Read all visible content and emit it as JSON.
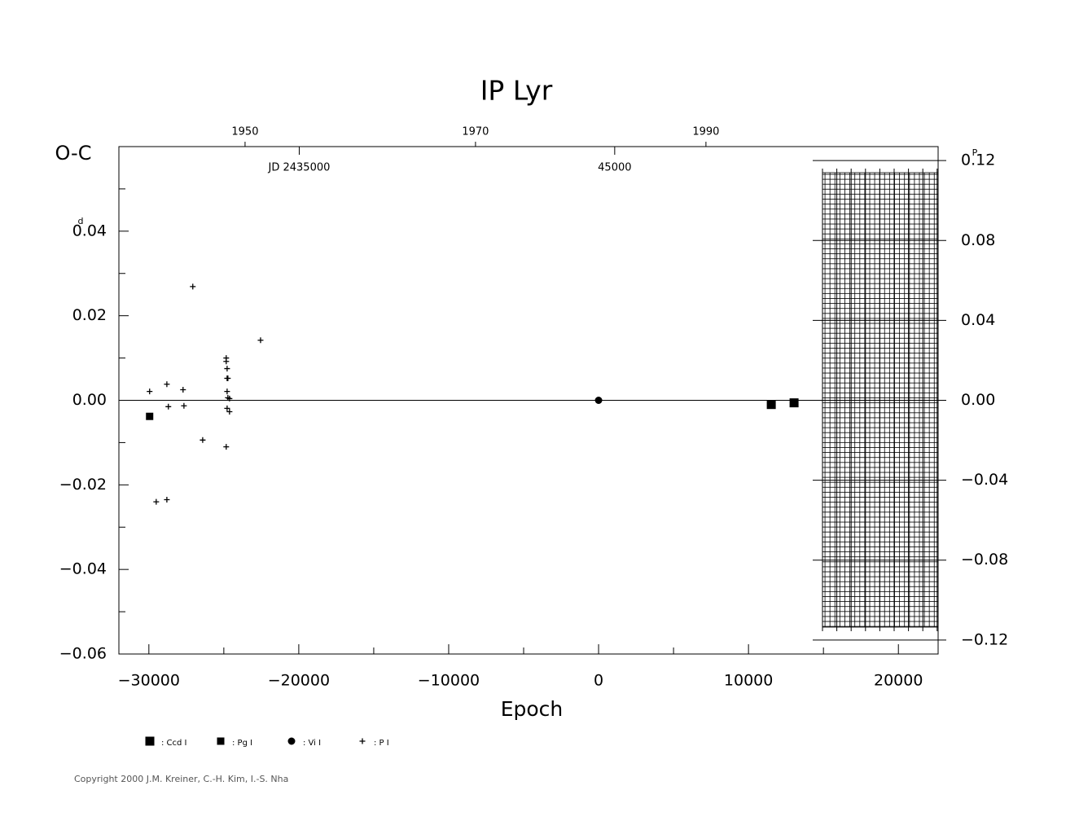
{
  "chart_data": {
    "type": "scatter",
    "title": "IP Lyr",
    "xlabel": "Epoch",
    "ylabel": "O-C",
    "y_unit": "d",
    "y2_unit": "P",
    "copyright": "Copyright 2000 J.M. Kreiner, C.-H. Kim, I.-S. Nha",
    "xlim": [
      -32000,
      22650
    ],
    "xticks": [
      {
        "value": -30000,
        "label": "−30000"
      },
      {
        "value": -20000,
        "label": "−20000"
      },
      {
        "value": -10000,
        "label": "−10000"
      },
      0,
      10000,
      20000
    ],
    "xminor": [
      -25000,
      -15000,
      -5000,
      5000,
      15000
    ],
    "ylim": [
      -0.06,
      0.06
    ],
    "yticks": [
      {
        "value": 0.04,
        "label": "0.04"
      },
      {
        "value": 0.02,
        "label": "0.02"
      },
      {
        "value": 0,
        "label": "0.00"
      },
      {
        "value": -0.02,
        "label": "−0.02"
      },
      {
        "value": -0.04,
        "label": "−0.04"
      },
      {
        "value": -0.06,
        "label": "−0.06"
      }
    ],
    "yminor": [
      0.05,
      0.03,
      0.01,
      -0.01,
      -0.03,
      -0.05
    ],
    "y2lim": [
      -0.127,
      0.127
    ],
    "y2ticks": [
      {
        "value": 0.12,
        "label": "0.12"
      },
      {
        "value": 0.08,
        "label": "0.08"
      },
      {
        "value": 0.04,
        "label": "0.04"
      },
      {
        "value": 0,
        "label": "0.00"
      },
      {
        "value": -0.04,
        "label": "−0.04"
      },
      {
        "value": -0.08,
        "label": "−0.08"
      },
      {
        "value": -0.12,
        "label": "−0.12"
      }
    ],
    "top_xlim": [
      1939.05,
      2010.15
    ],
    "top_xticks": [
      1950,
      1970,
      1990
    ],
    "jd_labels": [
      {
        "value": 2435000,
        "label": "JD 2435000"
      },
      {
        "value": 2445000,
        "label": "45000"
      }
    ],
    "reference_line": 0,
    "series": [
      {
        "name": ": Ccd I",
        "marker": "big-square",
        "color": "#000000",
        "x": [
          11520,
          13040
        ],
        "values": [
          -0.001,
          -0.0006
        ]
      },
      {
        "name": ": Pg I",
        "marker": "square",
        "color": "#000000",
        "x": [
          -29950
        ],
        "values": [
          -0.0038
        ]
      },
      {
        "name": ": Vi I",
        "marker": "circle",
        "color": "#000000",
        "x": [
          0
        ],
        "values": [
          0.0
        ]
      },
      {
        "name": ": P I",
        "marker": "plus",
        "color": "#000000",
        "x": [
          -27070,
          -29950,
          -28800,
          -28700,
          -27720,
          -27660,
          -26410,
          -29510,
          -28800,
          -24840,
          -24840,
          -24780,
          -24780,
          -24730,
          -24780,
          -24730,
          -24620,
          -24780,
          -24620,
          -24840,
          -22550
        ],
        "values": [
          0.0269,
          0.0021,
          0.0038,
          -0.0015,
          0.0025,
          -0.0013,
          -0.0094,
          -0.024,
          -0.0235,
          0.01,
          0.0092,
          0.0075,
          0.0052,
          0.0052,
          0.0021,
          0.0006,
          0.0004,
          -0.0019,
          -0.0027,
          -0.011,
          0.0142
        ]
      }
    ]
  }
}
